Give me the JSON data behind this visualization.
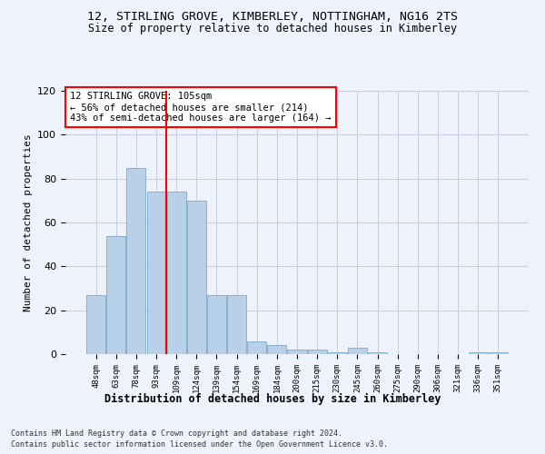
{
  "title": "12, STIRLING GROVE, KIMBERLEY, NOTTINGHAM, NG16 2TS",
  "subtitle": "Size of property relative to detached houses in Kimberley",
  "xlabel_bottom": "Distribution of detached houses by size in Kimberley",
  "ylabel": "Number of detached properties",
  "categories": [
    "48sqm",
    "63sqm",
    "78sqm",
    "93sqm",
    "109sqm",
    "124sqm",
    "139sqm",
    "154sqm",
    "169sqm",
    "184sqm",
    "200sqm",
    "215sqm",
    "230sqm",
    "245sqm",
    "260sqm",
    "275sqm",
    "290sqm",
    "306sqm",
    "321sqm",
    "336sqm",
    "351sqm"
  ],
  "values": [
    27,
    54,
    85,
    74,
    74,
    70,
    27,
    27,
    6,
    4,
    2,
    2,
    1,
    3,
    1,
    0,
    0,
    0,
    0,
    1,
    1
  ],
  "bar_color": "#b8d0e8",
  "bar_edge_color": "#7aaac8",
  "property_line_index": 4,
  "property_line_color": "red",
  "ylim": [
    0,
    120
  ],
  "yticks": [
    0,
    20,
    40,
    60,
    80,
    100,
    120
  ],
  "annotation_text": "12 STIRLING GROVE: 105sqm\n← 56% of detached houses are smaller (214)\n43% of semi-detached houses are larger (164) →",
  "annotation_box_color": "white",
  "annotation_box_edge_color": "red",
  "footnote_line1": "Contains HM Land Registry data © Crown copyright and database right 2024.",
  "footnote_line2": "Contains public sector information licensed under the Open Government Licence v3.0.",
  "background_color": "#eef2fb",
  "grid_color": "#c8cce0"
}
